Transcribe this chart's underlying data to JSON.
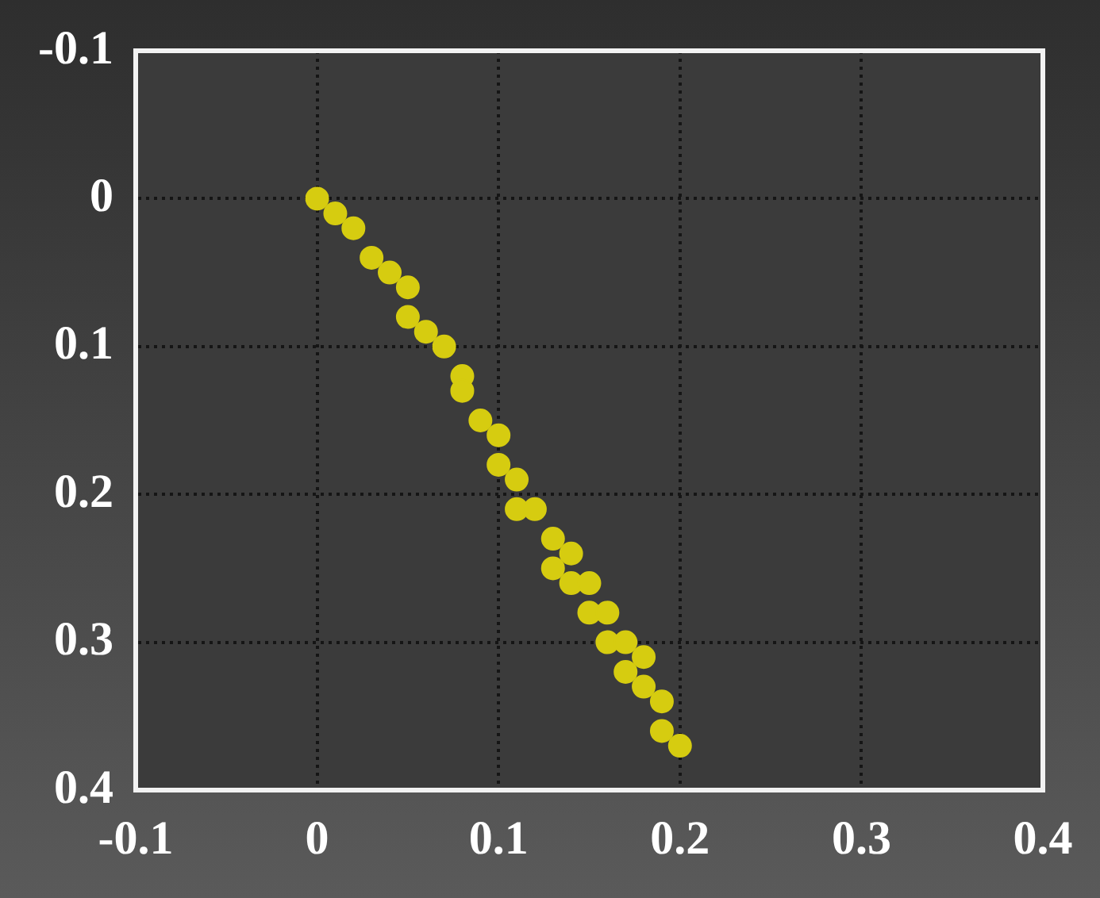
{
  "chart_data": {
    "type": "scatter",
    "marker": "circle",
    "grid": true,
    "xlim": [
      -0.1,
      0.4
    ],
    "xticks": [
      {
        "value": -0.1,
        "label": "-0.1"
      },
      0,
      0.1,
      0.2,
      0.3,
      0.4
    ],
    "ylim": [
      0.4,
      -0.1
    ],
    "yticks": [
      {
        "value": -0.1,
        "label": "-0.1"
      },
      0,
      0.1,
      0.2,
      0.3,
      0.4
    ],
    "series": [
      {
        "color": "#d6cc10",
        "x": [
          0,
          0.01,
          0.02,
          0.03,
          0.04,
          0.05,
          0.05,
          0.06,
          0.07,
          0.08,
          0.08,
          0.09,
          0.1,
          0.1,
          0.11,
          0.11,
          0.12,
          0.13,
          0.13,
          0.14,
          0.14,
          0.15,
          0.15,
          0.16,
          0.16,
          0.17,
          0.17,
          0.18,
          0.18,
          0.19,
          0.19,
          0.2
        ],
        "values": [
          0,
          0.01,
          0.02,
          0.04,
          0.05,
          0.06,
          0.08,
          0.09,
          0.1,
          0.12,
          0.13,
          0.15,
          0.16,
          0.18,
          0.19,
          0.21,
          0.21,
          0.23,
          0.25,
          0.24,
          0.26,
          0.26,
          0.28,
          0.28,
          0.3,
          0.3,
          0.32,
          0.31,
          0.33,
          0.34,
          0.36,
          0.37
        ]
      }
    ]
  }
}
